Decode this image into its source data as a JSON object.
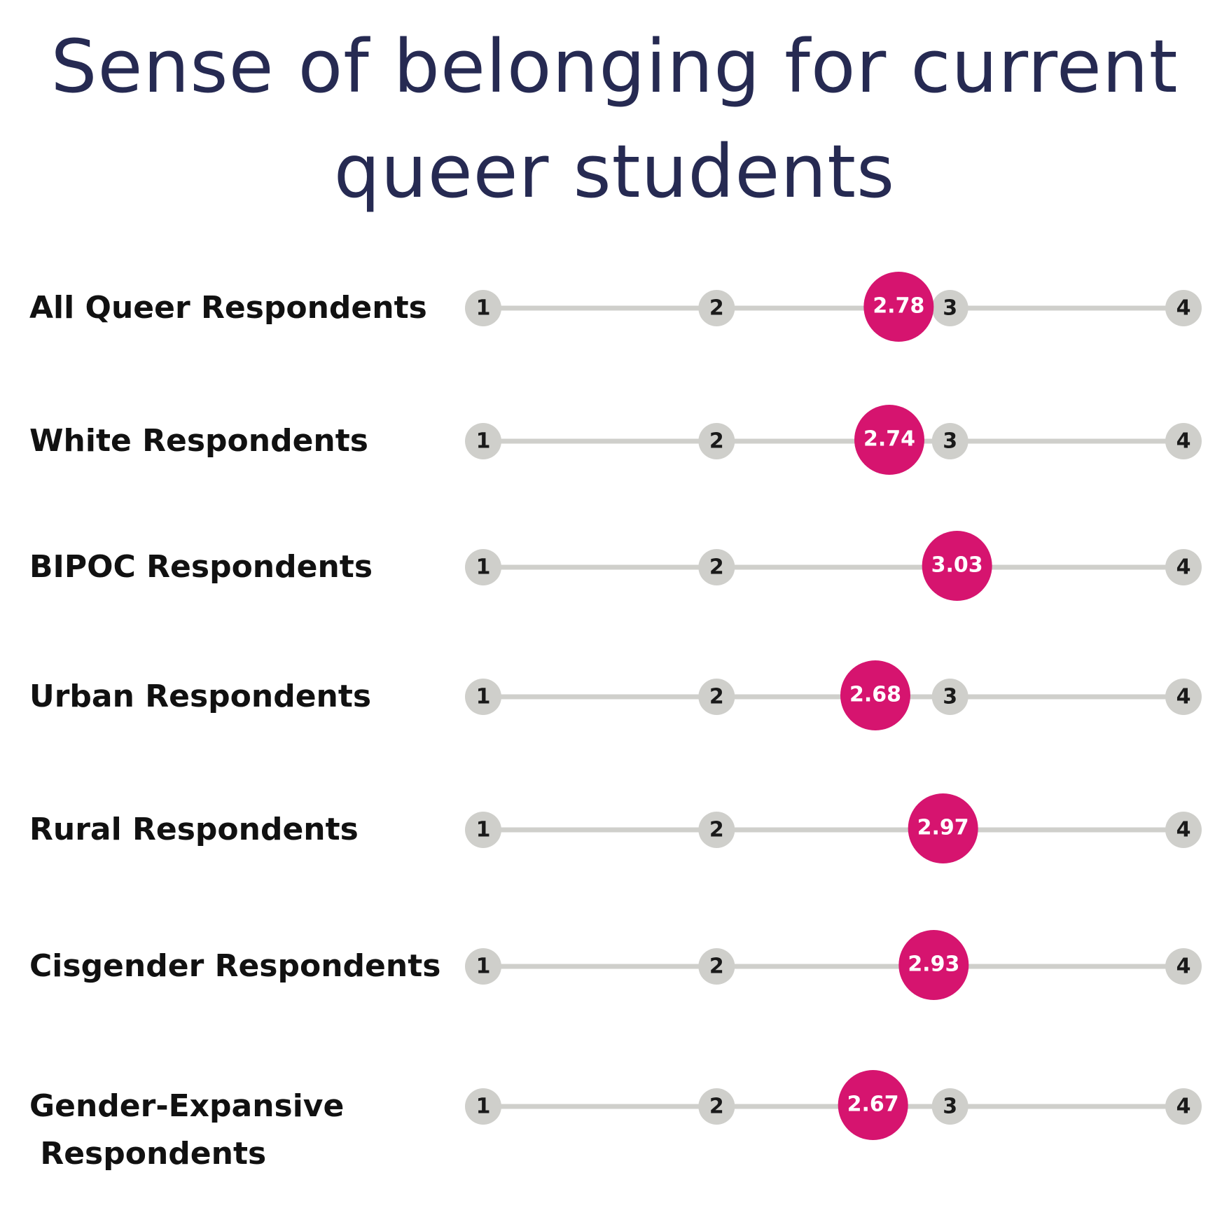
{
  "title": {
    "line1": "Sense of belonging for current",
    "line2": "queer students"
  },
  "colors": {
    "title": "#262a52",
    "track": "#cfcfcb",
    "tick_circle": "#cfcfcb",
    "marker": "#d6146f",
    "label": "#111111"
  },
  "chart_data": {
    "type": "scatter",
    "title": "Sense of belonging for current queer students",
    "xlim": [
      1,
      4
    ],
    "ticks": [
      "1",
      "2",
      "3",
      "4"
    ],
    "grid": false,
    "rows": [
      {
        "label": [
          "All Queer Respondents"
        ],
        "value": 2.78,
        "value_label": "2.78",
        "shown_ticks": [
          "1",
          "2",
          "3",
          "4"
        ]
      },
      {
        "label": [
          "White Respondents"
        ],
        "value": 2.74,
        "value_label": "2.74",
        "shown_ticks": [
          "1",
          "2",
          "3",
          "4"
        ]
      },
      {
        "label": [
          "BIPOC Respondents"
        ],
        "value": 3.03,
        "value_label": "3.03",
        "shown_ticks": [
          "1",
          "2",
          "4"
        ]
      },
      {
        "label": [
          "Urban Respondents"
        ],
        "value": 2.68,
        "value_label": "2.68",
        "shown_ticks": [
          "1",
          "2",
          "3",
          "4"
        ]
      },
      {
        "label": [
          "Rural Respondents"
        ],
        "value": 2.97,
        "value_label": "2.97",
        "shown_ticks": [
          "1",
          "2",
          "4"
        ]
      },
      {
        "label": [
          "Cisgender Respondents"
        ],
        "value": 2.93,
        "value_label": "2.93",
        "shown_ticks": [
          "1",
          "2",
          "4"
        ]
      },
      {
        "label": [
          "Gender-Expansive",
          " Respondents"
        ],
        "value": 2.67,
        "value_label": "2.67",
        "shown_ticks": [
          "1",
          "2",
          "3",
          "4"
        ]
      }
    ]
  }
}
